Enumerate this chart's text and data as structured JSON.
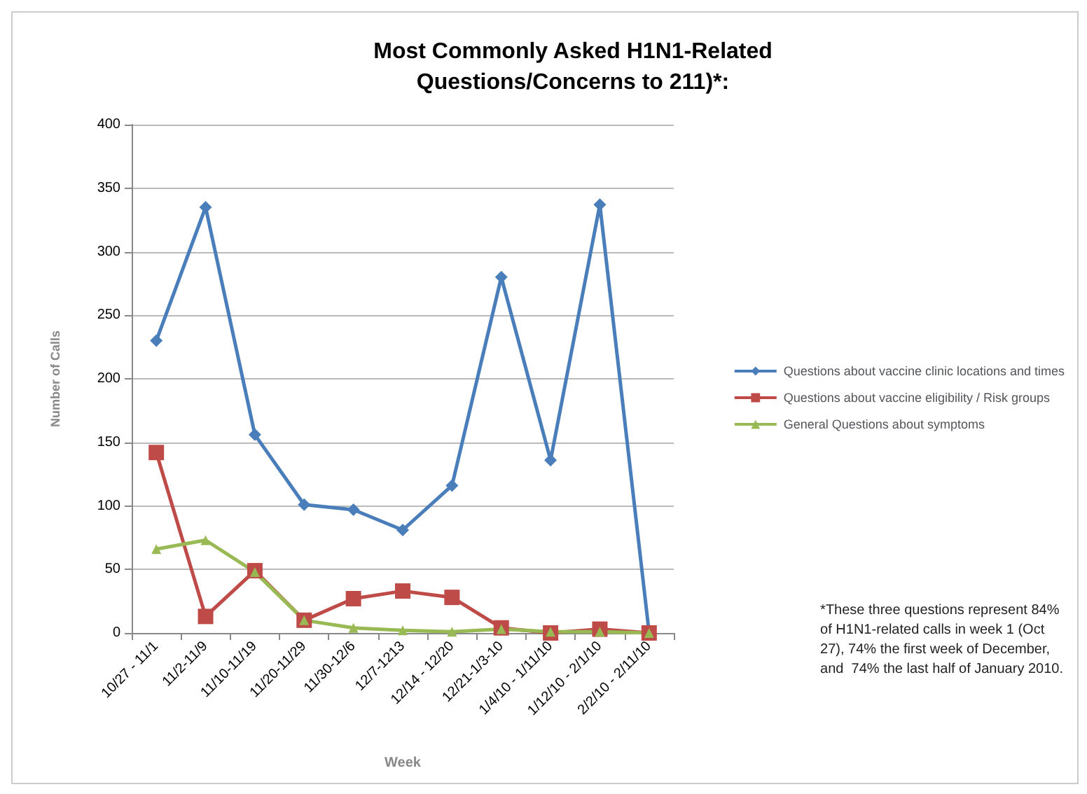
{
  "chart_data": {
    "type": "line",
    "title": "Most Commonly Asked H1N1-Related\nQuestions/Concerns to 211)*:",
    "xlabel": "Week",
    "ylabel": "Number of Calls",
    "categories": [
      "10/27 - 11/1",
      "11/2-11/9",
      "11/10-11/19",
      "11/20-11/29",
      "11/30-12/6",
      "12/7-1213",
      "12/14 - 12/20",
      "12/21-1/3-10",
      "1/4/10 - 1/11/10",
      "1/12/10 - 2/1/10",
      "2/2/10 - 2/11/10"
    ],
    "series": [
      {
        "name": "Questions about vaccine clinic locations and times",
        "color": "#4a7ebb",
        "marker": "diamond",
        "values": [
          230,
          335,
          156,
          101,
          97,
          81,
          116,
          280,
          136,
          337,
          0
        ]
      },
      {
        "name": "Questions about vaccine eligibility / Risk groups",
        "color": "#be4b48",
        "marker": "square",
        "values": [
          142,
          13,
          49,
          10,
          27,
          33,
          28,
          4,
          0,
          3,
          0
        ]
      },
      {
        "name": "General Questions about symptoms",
        "color": "#98b954",
        "marker": "triangle",
        "values": [
          66,
          73,
          48,
          10,
          4,
          2,
          1,
          3,
          1,
          1,
          0
        ]
      }
    ],
    "ylim": [
      0,
      400
    ],
    "yticks": [
      0,
      50,
      100,
      150,
      200,
      250,
      300,
      350,
      400
    ],
    "grid": "y",
    "legend": "right",
    "annotations": [
      "*These three questions represent 84%\nof H1N1-related calls in week 1 (Oct\n27), 74% the first week of December,\nand  74% the last half of January 2010."
    ]
  }
}
